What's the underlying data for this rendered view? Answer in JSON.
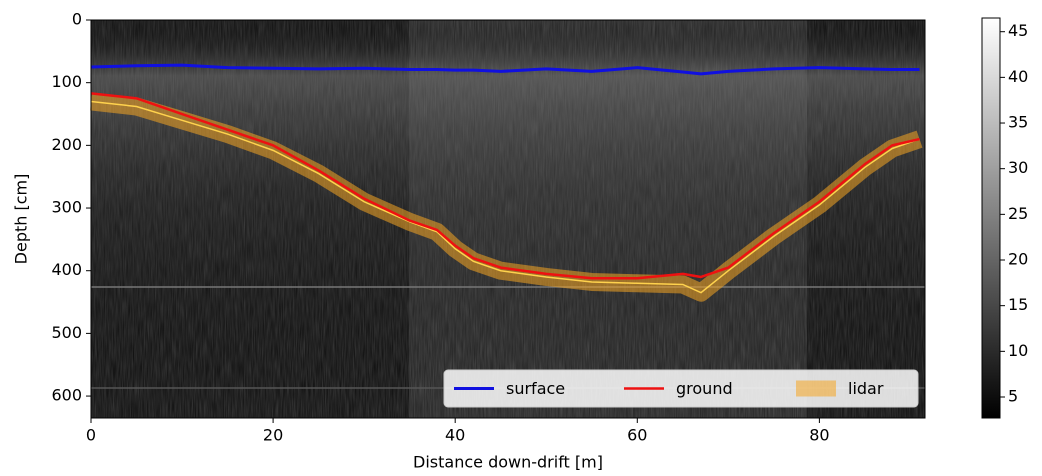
{
  "chart_data": {
    "type": "line",
    "xlabel": "Distance down-drift [m]",
    "ylabel": "Depth [cm]",
    "xlim": [
      0,
      91.6
    ],
    "ylim": [
      635,
      0
    ],
    "xticks": [
      0,
      20,
      40,
      60,
      80
    ],
    "yticks": [
      0,
      100,
      200,
      300,
      400,
      500,
      600
    ],
    "x": [
      0,
      5,
      10,
      15,
      20,
      25,
      30,
      35,
      38,
      40,
      42,
      45,
      50,
      55,
      60,
      65,
      67,
      70,
      75,
      80,
      85,
      88,
      91
    ],
    "series": [
      {
        "name": "surface",
        "color": "#1010e0",
        "values": [
          75,
          73,
          72,
          76,
          77,
          78,
          77,
          79,
          79,
          80,
          80,
          82,
          78,
          82,
          76,
          83,
          86,
          82,
          78,
          76,
          78,
          79,
          79
        ]
      },
      {
        "name": "ground",
        "color": "#ee1111",
        "values": [
          117,
          125,
          150,
          175,
          200,
          240,
          285,
          320,
          335,
          360,
          380,
          395,
          405,
          412,
          412,
          405,
          410,
          395,
          340,
          290,
          230,
          200,
          190
        ]
      },
      {
        "name": "lidar",
        "color": "#f5a623",
        "values": [
          130,
          138,
          160,
          182,
          208,
          245,
          290,
          322,
          338,
          365,
          385,
          400,
          410,
          418,
          420,
          422,
          435,
          400,
          345,
          295,
          235,
          205,
          190
        ]
      }
    ],
    "legend": "lower right",
    "colorbar": {
      "clim": [
        2.7,
        46.5
      ],
      "ticks": [
        5,
        10,
        15,
        20,
        25,
        30,
        35,
        40,
        45
      ]
    }
  }
}
